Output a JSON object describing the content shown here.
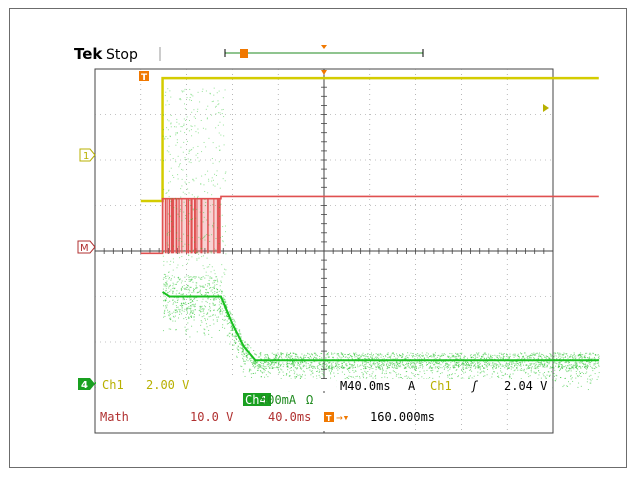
{
  "header": {
    "brand": "Tek",
    "status": "Stop"
  },
  "markers": {
    "trigger": "T",
    "ch1": "1",
    "math": "M",
    "ch4": "4"
  },
  "readout": {
    "ch1_label": "Ch1",
    "ch1_scale": "2.00 V",
    "ch4_label": "Ch4",
    "ch4_scale": "500mA",
    "ch4_unit": "Ω",
    "math_label": "Math",
    "math_scale": "10.0 V",
    "math_time": "40.0ms",
    "timebase": "M40.0ms",
    "trig_mode": "A",
    "trig_source": "Ch1",
    "trig_slope": "ʃ",
    "trig_level": "2.04 V",
    "trig_position": "160.000ms"
  },
  "colors": {
    "ch1": "#d4cc00",
    "math": "#e05050",
    "ch4": "#19c020",
    "trigger": "#f07800",
    "grid": "#444444",
    "readout_green": "#1f8a1f",
    "math_text": "#b03030"
  },
  "chart_data": {
    "type": "line",
    "title": "",
    "xlabel": "",
    "ylabel": "",
    "grid": true,
    "x_divisions": 10,
    "y_divisions": 8,
    "time_per_div_ms": 40,
    "trigger_time_ms": 160,
    "series": [
      {
        "name": "Ch1",
        "x_ms": [
          0,
          19,
          19,
          400
        ],
        "y_div": [
          1.1,
          1.1,
          3.8,
          3.8
        ]
      },
      {
        "name": "Math",
        "x_ms": [
          0,
          19,
          19,
          70,
          70,
          400
        ],
        "y_div": [
          -0.05,
          -0.05,
          1.15,
          1.15,
          1.2,
          1.2
        ],
        "burst_ms": [
          19,
          70
        ]
      },
      {
        "name": "Ch4",
        "x_ms": [
          19,
          25,
          45,
          70,
          80,
          90,
          100,
          400
        ],
        "y_div": [
          -0.9,
          -1.0,
          -1.0,
          -1.0,
          -1.6,
          -2.1,
          -2.4,
          -2.4
        ]
      }
    ]
  }
}
